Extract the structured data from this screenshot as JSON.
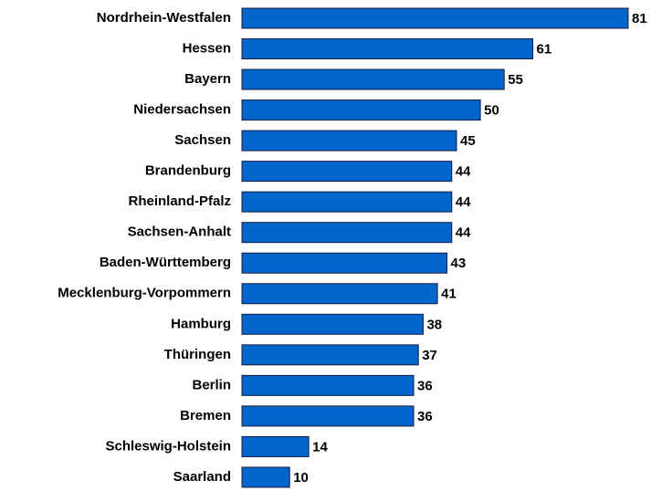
{
  "chart_data": {
    "type": "bar",
    "orientation": "horizontal",
    "categories": [
      "Nordrhein-Westfalen",
      "Hessen",
      "Bayern",
      "Niedersachsen",
      "Sachsen",
      "Brandenburg",
      "Rheinland-Pfalz",
      "Sachsen-Anhalt",
      "Baden-Württemberg",
      "Mecklenburg-Vorpommern",
      "Hamburg",
      "Thüringen",
      "Berlin",
      "Bremen",
      "Schleswig-Holstein",
      "Saarland"
    ],
    "values": [
      81,
      61,
      55,
      50,
      45,
      44,
      44,
      44,
      43,
      41,
      38,
      37,
      36,
      36,
      14,
      10
    ],
    "color": "#0066cc"
  }
}
